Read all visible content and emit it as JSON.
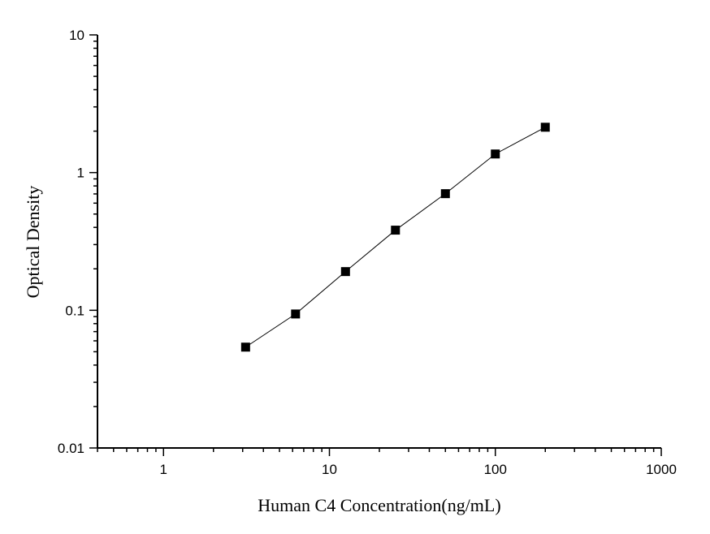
{
  "chart_data": {
    "type": "line",
    "title": "",
    "xlabel": "Human C4 Concentration(ng/mL)",
    "ylabel": "Optical Density",
    "xscale": "log",
    "yscale": "log",
    "xlim": [
      0.4,
      1000
    ],
    "ylim": [
      0.01,
      10
    ],
    "xticks": [
      1,
      10,
      100,
      1000
    ],
    "xtick_labels": [
      "1",
      "10",
      "100",
      "1000"
    ],
    "yticks": [
      0.01,
      0.1,
      1,
      10
    ],
    "ytick_labels": [
      "0.01",
      "0.1",
      "1",
      "10"
    ],
    "grid": false,
    "marker": "square",
    "color": "#000000",
    "series": [
      {
        "x": [
          3.125,
          6.25,
          12.5,
          25,
          50,
          100,
          200
        ],
        "y": [
          0.054,
          0.094,
          0.191,
          0.382,
          0.703,
          1.365,
          2.135
        ]
      }
    ]
  }
}
